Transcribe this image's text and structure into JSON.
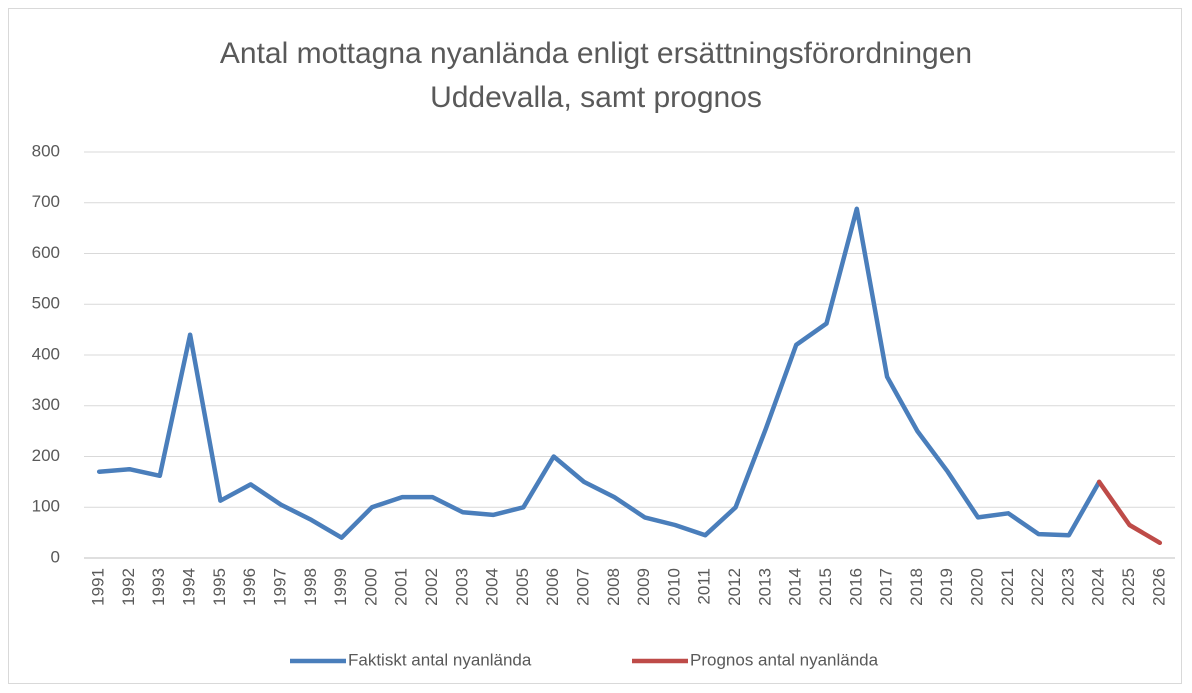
{
  "chart_data": {
    "type": "line",
    "title": "Antal mottagna nyanlända enligt ersättningsförordningen Uddevalla, samt prognos",
    "categories": [
      1991,
      1992,
      1993,
      1994,
      1995,
      1996,
      1997,
      1998,
      1999,
      2000,
      2001,
      2002,
      2003,
      2004,
      2005,
      2006,
      2007,
      2008,
      2009,
      2010,
      2011,
      2012,
      2013,
      2014,
      2015,
      2016,
      2017,
      2018,
      2019,
      2020,
      2021,
      2022,
      2023,
      2024,
      2025,
      2026
    ],
    "series": [
      {
        "name": "Faktiskt antal nyanlända",
        "color": "#4a7ebb",
        "values": [
          170,
          175,
          162,
          440,
          113,
          145,
          105,
          75,
          40,
          100,
          120,
          120,
          90,
          85,
          100,
          200,
          150,
          120,
          80,
          65,
          45,
          100,
          255,
          420,
          462,
          688,
          357,
          250,
          170,
          80,
          88,
          47,
          45,
          150,
          null,
          null
        ]
      },
      {
        "name": "Prognos antal nyanlända",
        "color": "#be4b48",
        "values": [
          null,
          null,
          null,
          null,
          null,
          null,
          null,
          null,
          null,
          null,
          null,
          null,
          null,
          null,
          null,
          null,
          null,
          null,
          null,
          null,
          null,
          null,
          null,
          null,
          null,
          null,
          null,
          null,
          null,
          null,
          null,
          null,
          null,
          150,
          65,
          30
        ]
      }
    ],
    "ylim": [
      0,
      800
    ],
    "yticks": [
      0,
      100,
      200,
      300,
      400,
      500,
      600,
      700,
      800
    ],
    "grid": true,
    "legend": "bottom"
  }
}
